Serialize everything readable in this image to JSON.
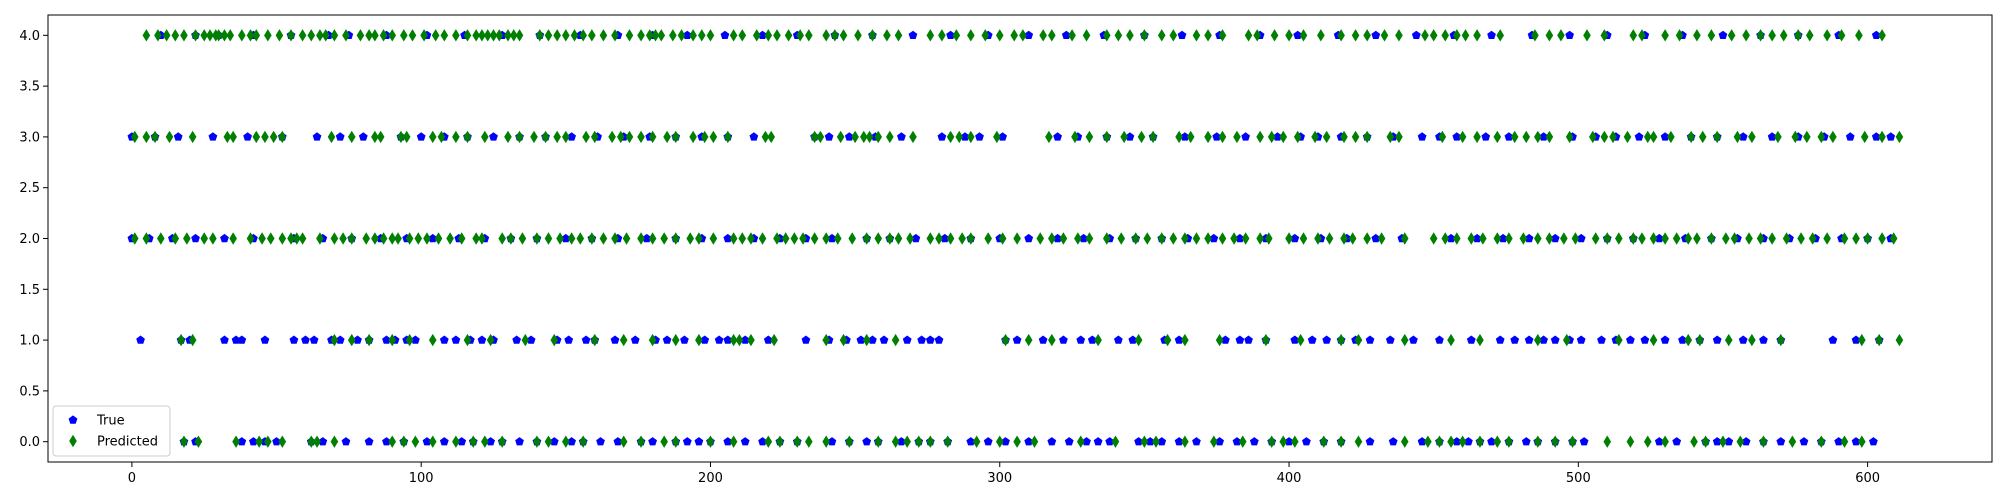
{
  "chart_data": {
    "type": "scatter",
    "title": "",
    "xlabel": "",
    "ylabel": "",
    "xlim": [
      -29,
      643
    ],
    "ylim": [
      -0.2,
      4.2
    ],
    "xticks": [
      0,
      100,
      200,
      300,
      400,
      500,
      600
    ],
    "yticks": [
      0.0,
      0.5,
      1.0,
      1.5,
      2.0,
      2.5,
      3.0,
      3.5,
      4.0
    ],
    "ytick_labels": [
      "0.0",
      "0.5",
      "1.0",
      "1.5",
      "2.0",
      "2.5",
      "3.0",
      "3.5",
      "4.0"
    ],
    "grid": false,
    "legend_position": "lower-left",
    "series": [
      {
        "name": "True",
        "marker": "pentagon",
        "color": "#0000ff",
        "points": [
          {
            "y": 4,
            "x": [
              10,
              22,
              30,
              42,
              55,
              68,
              75,
              88,
              102,
              115,
              128,
              141,
              155,
              168,
              180,
              192,
              205,
              218,
              230,
              243,
              256,
              270,
              283,
              296,
              310,
              323,
              336,
              350,
              363,
              376,
              390,
              403,
              417,
              430,
              444,
              457,
              470,
              484,
              497,
              510,
              523,
              536,
              550,
              563,
              576,
              590,
              603
            ]
          },
          {
            "y": 3,
            "x": [
              0,
              8,
              16,
              28,
              40,
              52,
              64,
              72,
              80,
              93,
              100,
              108,
              116,
              125,
              134,
              143,
              152,
              161,
              170,
              179,
              188,
              197,
              206,
              215,
              236,
              241,
              248,
              257,
              266,
              280,
              288,
              293,
              301,
              320,
              327,
              337,
              345,
              353,
              364,
              375,
              385,
              396,
              404,
              410,
              418,
              427,
              436,
              446,
              452,
              458,
              468,
              476,
              488,
              498,
              506,
              513,
              521,
              530,
              539,
              548,
              557,
              567,
              576,
              585,
              594,
              603,
              608
            ]
          },
          {
            "y": 2,
            "x": [
              0,
              6,
              14,
              22,
              32,
              42,
              56,
              66,
              76,
              86,
              95,
              104,
              113,
              122,
              131,
              140,
              150,
              159,
              168,
              178,
              188,
              197,
              206,
              215,
              224,
              233,
              242,
              254,
              262,
              271,
              281,
              290,
              300,
              310,
              320,
              329,
              338,
              347,
              356,
              365,
              374,
              383,
              392,
              402,
              411,
              420,
              430,
              439,
              456,
              465,
              474,
              483,
              492,
              501,
              510,
              519,
              528,
              537,
              546,
              555,
              564,
              573,
              582,
              591,
              600,
              608
            ]
          },
          {
            "y": 1,
            "x": [
              3,
              17,
              20,
              32,
              36,
              38,
              46,
              56,
              60,
              63,
              69,
              72,
              78,
              82,
              88,
              91,
              95,
              98,
              108,
              112,
              117,
              121,
              125,
              133,
              138,
              147,
              151,
              157,
              160,
              167,
              174,
              181,
              185,
              191,
              198,
              203,
              206,
              212,
              220,
              233,
              241,
              247,
              252,
              256,
              260,
              268,
              273,
              276,
              279,
              302,
              306,
              315,
              322,
              328,
              332,
              341,
              346,
              357,
              362,
              378,
              383,
              386,
              392,
              402,
              408,
              413,
              418,
              423,
              428,
              435,
              443,
              452,
              463,
              473,
              478,
              483,
              488,
              492,
              497,
              501,
              508,
              513,
              518,
              523,
              530,
              536,
              542,
              548,
              557,
              564,
              570,
              588,
              596,
              604
            ]
          },
          {
            "y": 0,
            "x": [
              18,
              22,
              38,
              42,
              46,
              50,
              62,
              66,
              74,
              82,
              88,
              94,
              102,
              108,
              114,
              118,
              124,
              128,
              134,
              140,
              146,
              152,
              156,
              162,
              168,
              176,
              180,
              188,
              192,
              196,
              200,
              206,
              212,
              218,
              224,
              230,
              242,
              248,
              254,
              258,
              266,
              272,
              276,
              282,
              290,
              296,
              302,
              310,
              318,
              324,
              330,
              334,
              338,
              348,
              352,
              356,
              362,
              368,
              376,
              382,
              388,
              394,
              400,
              406,
              412,
              418,
              428,
              436,
              446,
              452,
              458,
              462,
              466,
              470,
              476,
              482,
              486,
              492,
              498,
              502,
              528,
              534,
              544,
              548,
              552,
              558,
              564,
              570,
              578,
              584,
              590,
              596,
              602
            ]
          }
        ]
      },
      {
        "name": "Predicted",
        "marker": "diamond",
        "color": "#008000",
        "points": [
          {
            "y": 4,
            "x": [
              5,
              9,
              12,
              15,
              18,
              22,
              25,
              27,
              29,
              30,
              32,
              34,
              38,
              41,
              43,
              47,
              51,
              55,
              59,
              62,
              65,
              67,
              70,
              74,
              79,
              82,
              84,
              87,
              90,
              94,
              97,
              101,
              105,
              108,
              112,
              116,
              119,
              121,
              123,
              125,
              127,
              130,
              132,
              134,
              141,
              144,
              147,
              150,
              153,
              156,
              159,
              163,
              167,
              172,
              176,
              179,
              181,
              183,
              187,
              190,
              194,
              197,
              200,
              208,
              211,
              216,
              220,
              223,
              227,
              231,
              234,
              240,
              243,
              246,
              251,
              256,
              261,
              265,
              276,
              280,
              285,
              290,
              295,
              300,
              305,
              308,
              315,
              318,
              325,
              330,
              337,
              341,
              345,
              350,
              356,
              360,
              368,
              372,
              377,
              386,
              389,
              395,
              400,
              405,
              411,
              418,
              423,
              427,
              433,
              438,
              447,
              450,
              454,
              458,
              461,
              465,
              473,
              485,
              490,
              494,
              503,
              509,
              519,
              522,
              530,
              535,
              541,
              546,
              553,
              558,
              563,
              567,
              571,
              576,
              580,
              586,
              591,
              597,
              605
            ]
          },
          {
            "y": 3,
            "x": [
              1,
              5,
              8,
              13,
              21,
              33,
              35,
              43,
              46,
              49,
              52,
              69,
              76,
              84,
              86,
              93,
              95,
              104,
              107,
              112,
              116,
              122,
              130,
              134,
              139,
              143,
              147,
              150,
              157,
              160,
              166,
              169,
              172,
              176,
              180,
              185,
              188,
              194,
              198,
              201,
              206,
              219,
              221,
              236,
              238,
              245,
              250,
              253,
              255,
              258,
              262,
              270,
              283,
              286,
              290,
              299,
              317,
              326,
              331,
              337,
              343,
              349,
              353,
              362,
              366,
              372,
              377,
              382,
              390,
              394,
              398,
              403,
              409,
              413,
              419,
              423,
              427,
              435,
              438,
              453,
              460,
              465,
              472,
              478,
              482,
              486,
              490,
              497,
              505,
              509,
              512,
              517,
              524,
              526,
              532,
              539,
              543,
              548,
              555,
              560,
              569,
              575,
              579,
              584,
              588,
              599,
              605,
              611
            ]
          },
          {
            "y": 2,
            "x": [
              1,
              5,
              10,
              15,
              19,
              25,
              28,
              35,
              41,
              45,
              48,
              52,
              55,
              57,
              59,
              65,
              70,
              73,
              76,
              81,
              84,
              87,
              90,
              92,
              96,
              99,
              102,
              106,
              110,
              114,
              119,
              121,
              128,
              131,
              135,
              140,
              144,
              148,
              152,
              155,
              159,
              163,
              167,
              171,
              176,
              180,
              184,
              188,
              193,
              196,
              201,
              208,
              211,
              214,
              218,
              223,
              226,
              229,
              232,
              236,
              240,
              244,
              249,
              254,
              258,
              262,
              265,
              269,
              276,
              279,
              283,
              287,
              290,
              296,
              301,
              306,
              314,
              318,
              322,
              327,
              331,
              337,
              342,
              347,
              351,
              356,
              360,
              364,
              368,
              372,
              377,
              381,
              385,
              390,
              393,
              400,
              405,
              410,
              414,
              419,
              422,
              427,
              432,
              440,
              450,
              454,
              458,
              463,
              467,
              472,
              476,
              481,
              486,
              490,
              495,
              499,
              506,
              510,
              514,
              519,
              522,
              526,
              530,
              534,
              538,
              541,
              546,
              551,
              554,
              559,
              563,
              567,
              572,
              577,
              581,
              586,
              592,
              596,
              600,
              605,
              609
            ]
          },
          {
            "y": 1,
            "x": [
              17,
              21,
              70,
              76,
              82,
              90,
              96,
              104,
              116,
              124,
              136,
              146,
              160,
              170,
              180,
              188,
              196,
              208,
              210,
              214,
              222,
              240,
              246,
              254,
              264,
              302,
              310,
              318,
              334,
              348,
              358,
              364,
              376,
              392,
              404,
              418,
              424,
              440,
              456,
              466,
              486,
              496,
              514,
              526,
              538,
              542,
              552,
              560,
              570,
              598,
              604,
              611
            ]
          },
          {
            "y": 0,
            "x": [
              18,
              23,
              36,
              44,
              47,
              52,
              62,
              64,
              70,
              90,
              94,
              98,
              104,
              112,
              118,
              122,
              128,
              140,
              144,
              150,
              156,
              170,
              176,
              184,
              188,
              200,
              208,
              220,
              224,
              230,
              234,
              240,
              248,
              258,
              264,
              268,
              272,
              276,
              282,
              292,
              300,
              306,
              312,
              328,
              340,
              350,
              354,
              364,
              374,
              384,
              394,
              398,
              402,
              412,
              418,
              424,
              440,
              448,
              452,
              456,
              460,
              466,
              472,
              476,
              486,
              492,
              498,
              510,
              518,
              524,
              530,
              540,
              544,
              550,
              556,
              564,
              574,
              584,
              592,
              598
            ]
          }
        ]
      }
    ]
  }
}
